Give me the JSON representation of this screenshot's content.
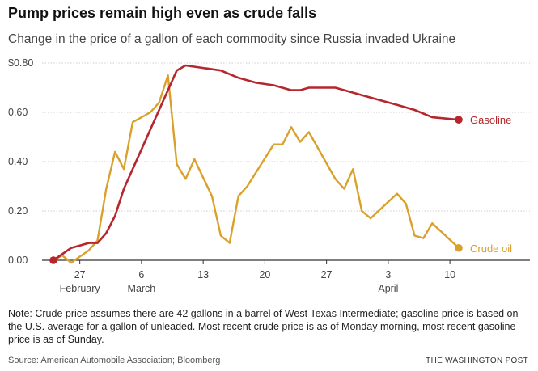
{
  "header": {
    "title": "Pump prices remain high even as crude falls",
    "subtitle": "Change in the price of a gallon of each commodity since Russia invaded Ukraine"
  },
  "footer": {
    "note": "Note: Crude price assumes there are 42 gallons in a barrel of West Texas Intermediate; gasoline price is based on the U.S. average for a gallon of unleaded. Most recent crude price is as of Monday morning, most recent gasoline price is as of Sunday.",
    "source": "Source: American Automobile Association; Bloomberg",
    "credit": "THE WASHINGTON POST"
  },
  "colors": {
    "gasoline": "#b5272d",
    "crude": "#d9a12c",
    "grid": "#cccccc",
    "baseline": "#333333"
  },
  "chart_data": {
    "type": "line",
    "title": "Pump prices remain high even as crude falls",
    "subtitle": "Change in the price of a gallon of each commodity since Russia invaded Ukraine",
    "xlabel": "",
    "ylabel": "",
    "x_range": [
      "2022-02-24",
      "2022-04-11"
    ],
    "ylim": [
      0,
      0.8
    ],
    "y_ticks": [
      {
        "value": 0.8,
        "label": "$0.80"
      },
      {
        "value": 0.6,
        "label": "0.60"
      },
      {
        "value": 0.4,
        "label": "0.40"
      },
      {
        "value": 0.2,
        "label": "0.20"
      },
      {
        "value": 0,
        "label": "0.00"
      }
    ],
    "x_ticks": [
      {
        "date": "2022-02-27",
        "label": "27",
        "month": "February"
      },
      {
        "date": "2022-03-06",
        "label": "6",
        "month": "March"
      },
      {
        "date": "2022-03-13",
        "label": "13",
        "month": ""
      },
      {
        "date": "2022-03-20",
        "label": "20",
        "month": ""
      },
      {
        "date": "2022-03-27",
        "label": "27",
        "month": ""
      },
      {
        "date": "2022-04-03",
        "label": "3",
        "month": "April"
      },
      {
        "date": "2022-04-10",
        "label": "10",
        "month": ""
      }
    ],
    "grid": true,
    "legend": "direct labels at line ends",
    "series": [
      {
        "name": "Gasoline",
        "color": "#b5272d",
        "points": [
          [
            "2022-02-24",
            0.0
          ],
          [
            "2022-02-26",
            0.05
          ],
          [
            "2022-02-27",
            0.06
          ],
          [
            "2022-02-28",
            0.07
          ],
          [
            "2022-03-01",
            0.07
          ],
          [
            "2022-03-02",
            0.11
          ],
          [
            "2022-03-03",
            0.18
          ],
          [
            "2022-03-04",
            0.29
          ],
          [
            "2022-03-05",
            0.37
          ],
          [
            "2022-03-06",
            0.45
          ],
          [
            "2022-03-07",
            0.53
          ],
          [
            "2022-03-08",
            0.61
          ],
          [
            "2022-03-09",
            0.69
          ],
          [
            "2022-03-10",
            0.77
          ],
          [
            "2022-03-11",
            0.79
          ],
          [
            "2022-03-13",
            0.78
          ],
          [
            "2022-03-15",
            0.77
          ],
          [
            "2022-03-17",
            0.74
          ],
          [
            "2022-03-19",
            0.72
          ],
          [
            "2022-03-21",
            0.71
          ],
          [
            "2022-03-23",
            0.69
          ],
          [
            "2022-03-24",
            0.69
          ],
          [
            "2022-03-25",
            0.7
          ],
          [
            "2022-03-28",
            0.7
          ],
          [
            "2022-03-30",
            0.68
          ],
          [
            "2022-04-01",
            0.66
          ],
          [
            "2022-04-03",
            0.64
          ],
          [
            "2022-04-04",
            0.63
          ],
          [
            "2022-04-06",
            0.61
          ],
          [
            "2022-04-08",
            0.58
          ],
          [
            "2022-04-11",
            0.57
          ]
        ]
      },
      {
        "name": "Crude oil",
        "color": "#d9a12c",
        "points": [
          [
            "2022-02-24",
            0.0
          ],
          [
            "2022-02-25",
            0.02
          ],
          [
            "2022-02-26",
            -0.01
          ],
          [
            "2022-02-28",
            0.04
          ],
          [
            "2022-03-01",
            0.08
          ],
          [
            "2022-03-02",
            0.29
          ],
          [
            "2022-03-03",
            0.44
          ],
          [
            "2022-03-04",
            0.37
          ],
          [
            "2022-03-05",
            0.56
          ],
          [
            "2022-03-07",
            0.6
          ],
          [
            "2022-03-08",
            0.64
          ],
          [
            "2022-03-09",
            0.75
          ],
          [
            "2022-03-10",
            0.39
          ],
          [
            "2022-03-11",
            0.33
          ],
          [
            "2022-03-12",
            0.41
          ],
          [
            "2022-03-14",
            0.26
          ],
          [
            "2022-03-15",
            0.1
          ],
          [
            "2022-03-16",
            0.07
          ],
          [
            "2022-03-17",
            0.26
          ],
          [
            "2022-03-18",
            0.3
          ],
          [
            "2022-03-21",
            0.47
          ],
          [
            "2022-03-22",
            0.47
          ],
          [
            "2022-03-23",
            0.54
          ],
          [
            "2022-03-24",
            0.48
          ],
          [
            "2022-03-25",
            0.52
          ],
          [
            "2022-03-28",
            0.33
          ],
          [
            "2022-03-29",
            0.29
          ],
          [
            "2022-03-30",
            0.37
          ],
          [
            "2022-03-31",
            0.2
          ],
          [
            "2022-04-01",
            0.17
          ],
          [
            "2022-04-04",
            0.27
          ],
          [
            "2022-04-05",
            0.23
          ],
          [
            "2022-04-06",
            0.1
          ],
          [
            "2022-04-07",
            0.09
          ],
          [
            "2022-04-08",
            0.15
          ],
          [
            "2022-04-11",
            0.05
          ]
        ]
      }
    ]
  }
}
